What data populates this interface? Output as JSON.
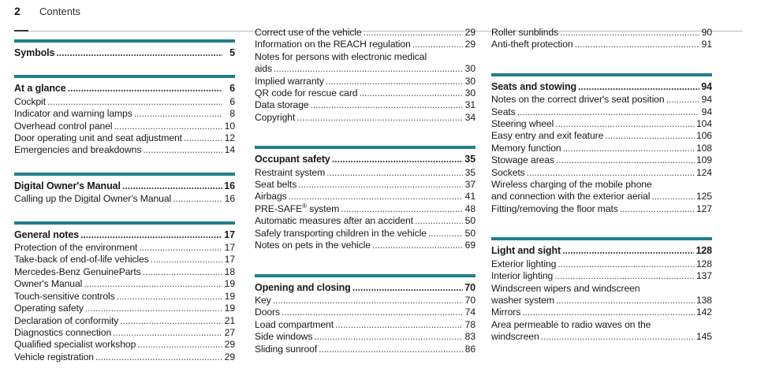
{
  "header": {
    "page_number": "2",
    "title": "Contents"
  },
  "col1": {
    "s1": {
      "heading": {
        "text": "Symbols",
        "page": "5"
      },
      "entries": []
    },
    "s2": {
      "heading": {
        "text": "At a glance",
        "page": "6"
      },
      "entries": [
        {
          "text": "Cockpit",
          "page": "6"
        },
        {
          "text": "Indicator and warning lamps",
          "page": "8"
        },
        {
          "text": "Overhead control panel",
          "page": "10"
        },
        {
          "text": "Door operating unit and seat adjustment",
          "page": "12"
        },
        {
          "text": "Emergencies and breakdowns",
          "page": "14"
        }
      ]
    },
    "s3": {
      "heading": {
        "text": "Digital Owner's Manual",
        "page": "16"
      },
      "entries": [
        {
          "text": "Calling up the Digital Owner's Manual",
          "page": "16"
        }
      ]
    },
    "s4": {
      "heading": {
        "text": "General notes",
        "page": "17"
      },
      "entries": [
        {
          "text": "Protection of the environment",
          "page": "17"
        },
        {
          "text": "Take-back of end-of-life vehicles",
          "page": "17"
        },
        {
          "text": "Mercedes-Benz GenuineParts",
          "page": "18"
        },
        {
          "text": "Owner's Manual",
          "page": "19"
        },
        {
          "text": "Touch-sensitive controls",
          "page": "19"
        },
        {
          "text": "Operating safety",
          "page": "19"
        },
        {
          "text": "Declaration of conformity",
          "page": "21"
        },
        {
          "text": "Diagnostics connection",
          "page": "27"
        },
        {
          "text": "Qualified specialist workshop",
          "page": "29"
        },
        {
          "text": "Vehicle registration",
          "page": "29"
        }
      ]
    }
  },
  "col2": {
    "top": [
      {
        "text": "Correct use of the vehicle",
        "page": "29"
      },
      {
        "text": "Information on the REACH regulation",
        "page": "29"
      },
      {
        "text": "Notes for persons with electronic medical",
        "cont": true
      },
      {
        "text": "aids",
        "page": "30"
      },
      {
        "text": "Implied warranty",
        "page": "30"
      },
      {
        "text": "QR code for rescue card",
        "page": "30"
      },
      {
        "text": "Data storage",
        "page": "31"
      },
      {
        "text": "Copyright",
        "page": "34"
      }
    ],
    "s1": {
      "heading": {
        "text": "Occupant safety",
        "page": "35"
      },
      "entries": [
        {
          "text": "Restraint system",
          "page": "35"
        },
        {
          "text": "Seat belts",
          "page": "37"
        },
        {
          "text": "Airbags",
          "page": "41"
        },
        {
          "text": "PRE-SAFE",
          "sup": "®",
          "text2": " system",
          "page": "48"
        },
        {
          "text": "Automatic measures after an accident",
          "page": "50"
        },
        {
          "text": "Safely transporting children in the vehicle",
          "page": "50"
        },
        {
          "text": "Notes on pets in the vehicle",
          "page": "69"
        }
      ]
    },
    "s2": {
      "heading": {
        "text": "Opening and closing",
        "page": "70"
      },
      "entries": [
        {
          "text": "Key",
          "page": "70"
        },
        {
          "text": "Doors",
          "page": "74"
        },
        {
          "text": "Load compartment",
          "page": "78"
        },
        {
          "text": "Side windows",
          "page": "83"
        },
        {
          "text": "Sliding sunroof",
          "page": "86"
        }
      ]
    }
  },
  "col3": {
    "top": [
      {
        "text": "Roller sunblinds",
        "page": "90"
      },
      {
        "text": "Anti-theft protection",
        "page": "91"
      }
    ],
    "s1": {
      "heading": {
        "text": "Seats and stowing",
        "page": "94"
      },
      "entries": [
        {
          "text": "Notes on the correct driver's seat position",
          "page": "94"
        },
        {
          "text": "Seats",
          "page": "94"
        },
        {
          "text": "Steering wheel",
          "page": "104"
        },
        {
          "text": "Easy entry and exit feature",
          "page": "106"
        },
        {
          "text": "Memory function",
          "page": "108"
        },
        {
          "text": "Stowage areas",
          "page": "109"
        },
        {
          "text": "Sockets",
          "page": "124"
        },
        {
          "text": "Wireless charging of the mobile phone",
          "cont": true
        },
        {
          "text": "and connection with the exterior aerial",
          "page": "125"
        },
        {
          "text": "Fitting/removing the floor mats",
          "page": "127"
        }
      ]
    },
    "s2": {
      "heading": {
        "text": "Light and sight",
        "page": "128"
      },
      "entries": [
        {
          "text": "Exterior lighting",
          "page": "128"
        },
        {
          "text": "Interior lighting",
          "page": "137"
        },
        {
          "text": "Windscreen wipers and windscreen",
          "cont": true
        },
        {
          "text": "washer system",
          "page": "138"
        },
        {
          "text": "Mirrors",
          "page": "142"
        },
        {
          "text": "Area permeable to radio waves on the",
          "cont": true
        },
        {
          "text": "windscreen",
          "page": "145"
        }
      ]
    }
  }
}
